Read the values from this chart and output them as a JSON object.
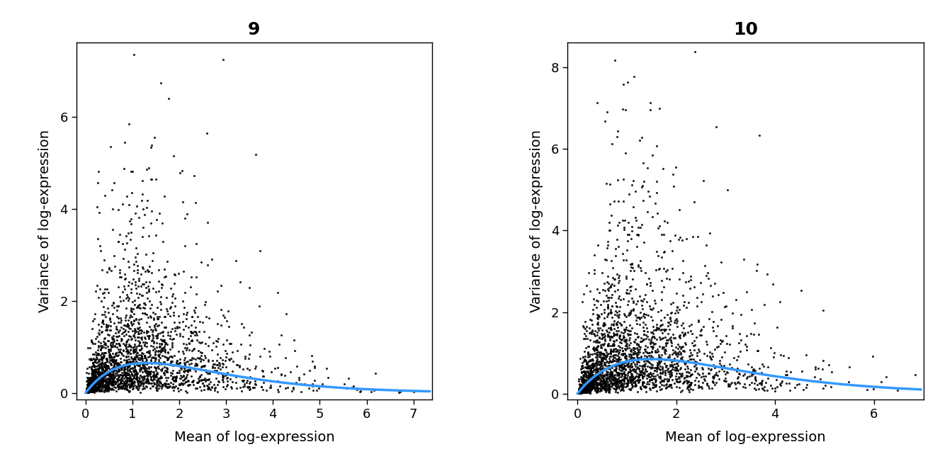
{
  "panels": [
    {
      "title": "9",
      "xlabel": "Mean of log-expression",
      "ylabel": "Variance of log-expression",
      "xlim": [
        -0.2,
        7.4
      ],
      "ylim": [
        -0.15,
        7.6
      ],
      "xticks": [
        0,
        1,
        2,
        3,
        4,
        5,
        6,
        7
      ],
      "yticks": [
        0,
        2,
        4,
        6
      ],
      "seed": 42,
      "n_points": 2500,
      "trend_peak_x": 1.3,
      "trend_peak_y": 0.65,
      "trend_color": "#3399ff",
      "point_color": "#000000",
      "point_size": 5,
      "point_alpha": 0.85
    },
    {
      "title": "10",
      "xlabel": "Mean of log-expression",
      "ylabel": "Variance of log-expression",
      "xlim": [
        -0.2,
        7.0
      ],
      "ylim": [
        -0.15,
        8.6
      ],
      "xticks": [
        0,
        2,
        4,
        6
      ],
      "yticks": [
        0,
        2,
        4,
        6,
        8
      ],
      "seed": 123,
      "n_points": 2500,
      "trend_peak_x": 1.5,
      "trend_peak_y": 0.85,
      "trend_color": "#3399ff",
      "point_color": "#000000",
      "point_size": 5,
      "point_alpha": 0.85
    }
  ],
  "bg_color": "#ffffff",
  "title_fontsize": 18,
  "label_fontsize": 14,
  "tick_fontsize": 13
}
